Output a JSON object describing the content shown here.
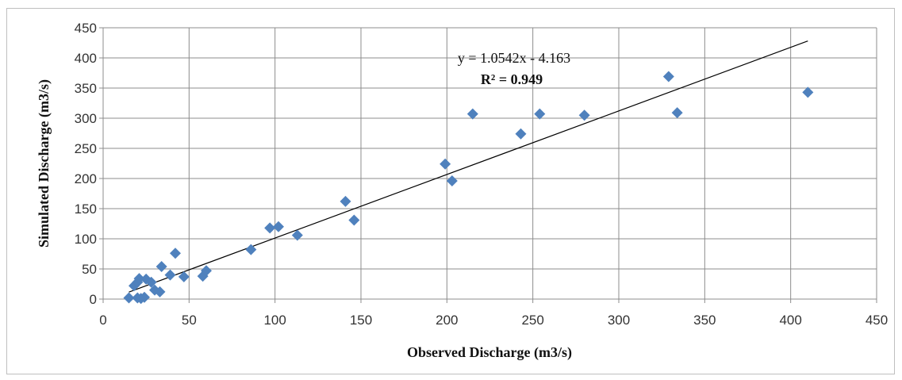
{
  "chart_data": {
    "type": "scatter",
    "title": "",
    "xlabel": "Observed Discharge (m3/s)",
    "ylabel": "Simulated Discharge (m3/s)",
    "xlim": [
      0,
      450
    ],
    "ylim": [
      0,
      450
    ],
    "xticks": [
      0,
      50,
      100,
      150,
      200,
      250,
      300,
      350,
      400,
      450
    ],
    "yticks": [
      0,
      50,
      100,
      150,
      200,
      250,
      300,
      350,
      400,
      450
    ],
    "grid": "horizontal",
    "marker": "diamond",
    "marker_color": "#4f81bd",
    "trendline": {
      "slope": 1.0542,
      "intercept": -4.163,
      "x_range": [
        15,
        410
      ],
      "color": "#000000",
      "equation_label": "y = 1.0542x - 4.163",
      "r2_label": "R² = 0.949"
    },
    "points": [
      {
        "x": 15,
        "y": 2
      },
      {
        "x": 18,
        "y": 22
      },
      {
        "x": 20,
        "y": 28
      },
      {
        "x": 21,
        "y": 34
      },
      {
        "x": 20,
        "y": 2
      },
      {
        "x": 22,
        "y": 1
      },
      {
        "x": 24,
        "y": 3
      },
      {
        "x": 25,
        "y": 33
      },
      {
        "x": 28,
        "y": 28
      },
      {
        "x": 30,
        "y": 15
      },
      {
        "x": 33,
        "y": 12
      },
      {
        "x": 34,
        "y": 54
      },
      {
        "x": 39,
        "y": 40
      },
      {
        "x": 42,
        "y": 76
      },
      {
        "x": 47,
        "y": 37
      },
      {
        "x": 58,
        "y": 38
      },
      {
        "x": 60,
        "y": 47
      },
      {
        "x": 86,
        "y": 82
      },
      {
        "x": 97,
        "y": 118
      },
      {
        "x": 102,
        "y": 120
      },
      {
        "x": 113,
        "y": 106
      },
      {
        "x": 141,
        "y": 162
      },
      {
        "x": 146,
        "y": 131
      },
      {
        "x": 199,
        "y": 224
      },
      {
        "x": 203,
        "y": 196
      },
      {
        "x": 215,
        "y": 307
      },
      {
        "x": 243,
        "y": 274
      },
      {
        "x": 254,
        "y": 307
      },
      {
        "x": 280,
        "y": 305
      },
      {
        "x": 329,
        "y": 369
      },
      {
        "x": 334,
        "y": 309
      },
      {
        "x": 410,
        "y": 343
      }
    ]
  }
}
